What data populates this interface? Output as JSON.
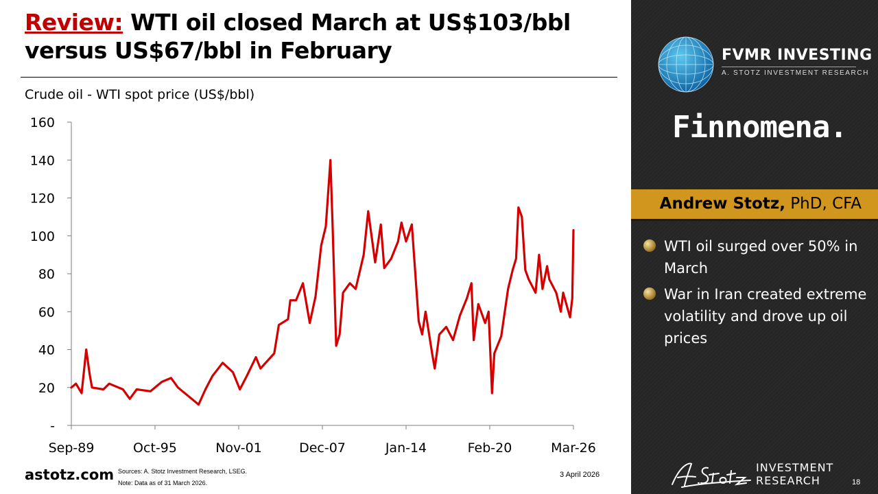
{
  "slide": {
    "title_lead": "Review:",
    "title_rest": " WTI oil closed March at US$103/bbl versus US$67/bbl in February",
    "footer_brand": "astotz.com",
    "sources": "Sources: A. Stotz Investment Research, LSEG.",
    "note": "Note: Data as of 31 March 2026.",
    "date": "3 April 2026",
    "page_number": "18"
  },
  "sidebar": {
    "fvmr_name": "FVMR INVESTING",
    "fvmr_tagline": "A. STOTZ INVESTMENT RESEARCH",
    "partner_logo": "Finnomena.",
    "presenter_name": "Andrew Stotz,",
    "presenter_credentials": " PhD, CFA",
    "bullets": [
      "WTI oil surged over 50% in March",
      "War in Iran created extreme volatility and drove up oil prices"
    ],
    "ir_logo_line1": "INVESTMENT",
    "ir_logo_line2": "RESEARCH",
    "accent_color": "#d0961e",
    "panel_color": "#262626",
    "icons": [
      "globe-icon",
      "signature-logo-icon",
      "bullet-icon"
    ]
  },
  "chart_data": {
    "type": "line",
    "title": "Crude oil - WTI spot price (US$/bbl)",
    "xlabel": "",
    "ylabel": "",
    "x_start": "1989-09",
    "x_end": "2026-03",
    "xlim": [
      "1989-09",
      "2026-03"
    ],
    "ylim": [
      0,
      160
    ],
    "y_ticks": [
      0,
      20,
      40,
      60,
      80,
      100,
      120,
      140,
      160
    ],
    "y_tick_labels": [
      "-",
      "20",
      "40",
      "60",
      "80",
      "100",
      "120",
      "140",
      "160"
    ],
    "x_ticks": [
      "1989-09",
      "1995-10",
      "2001-11",
      "2007-12",
      "2014-01",
      "2020-02",
      "2026-03"
    ],
    "x_tick_labels": [
      "Sep-89",
      "Oct-95",
      "Nov-01",
      "Dec-07",
      "Jan-14",
      "Feb-20",
      "Mar-26"
    ],
    "grid": false,
    "legend": "none",
    "series": [
      {
        "color": "#d40000",
        "points": [
          [
            "1989-09",
            20
          ],
          [
            "1990-01",
            22
          ],
          [
            "1990-06",
            17
          ],
          [
            "1990-10",
            40
          ],
          [
            "1991-01",
            27
          ],
          [
            "1991-03",
            20
          ],
          [
            "1992-01",
            19
          ],
          [
            "1992-06",
            22
          ],
          [
            "1993-06",
            19
          ],
          [
            "1993-12",
            14
          ],
          [
            "1994-06",
            19
          ],
          [
            "1995-06",
            18
          ],
          [
            "1996-04",
            23
          ],
          [
            "1996-12",
            25
          ],
          [
            "1997-06",
            20
          ],
          [
            "1998-06",
            14
          ],
          [
            "1998-12",
            11
          ],
          [
            "1999-06",
            19
          ],
          [
            "1999-12",
            26
          ],
          [
            "2000-09",
            33
          ],
          [
            "2001-06",
            28
          ],
          [
            "2001-12",
            19
          ],
          [
            "2002-06",
            26
          ],
          [
            "2003-02",
            36
          ],
          [
            "2003-06",
            30
          ],
          [
            "2004-06",
            38
          ],
          [
            "2004-10",
            53
          ],
          [
            "2005-06",
            56
          ],
          [
            "2005-08",
            66
          ],
          [
            "2006-01",
            66
          ],
          [
            "2006-07",
            75
          ],
          [
            "2007-01",
            54
          ],
          [
            "2007-06",
            68
          ],
          [
            "2007-11",
            95
          ],
          [
            "2008-03",
            105
          ],
          [
            "2008-07",
            140
          ],
          [
            "2008-09",
            104
          ],
          [
            "2008-12",
            42
          ],
          [
            "2009-03",
            48
          ],
          [
            "2009-06",
            70
          ],
          [
            "2009-12",
            75
          ],
          [
            "2010-05",
            72
          ],
          [
            "2010-12",
            90
          ],
          [
            "2011-04",
            113
          ],
          [
            "2011-10",
            86
          ],
          [
            "2012-03",
            106
          ],
          [
            "2012-06",
            83
          ],
          [
            "2012-12",
            88
          ],
          [
            "2013-06",
            97
          ],
          [
            "2013-09",
            107
          ],
          [
            "2014-01",
            97
          ],
          [
            "2014-06",
            106
          ],
          [
            "2014-12",
            55
          ],
          [
            "2015-03",
            48
          ],
          [
            "2015-06",
            60
          ],
          [
            "2015-12",
            37
          ],
          [
            "2016-02",
            30
          ],
          [
            "2016-06",
            48
          ],
          [
            "2016-12",
            52
          ],
          [
            "2017-06",
            45
          ],
          [
            "2017-12",
            58
          ],
          [
            "2018-06",
            67
          ],
          [
            "2018-10",
            75
          ],
          [
            "2018-12",
            45
          ],
          [
            "2019-04",
            64
          ],
          [
            "2019-10",
            54
          ],
          [
            "2020-01",
            60
          ],
          [
            "2020-04",
            17
          ],
          [
            "2020-06",
            38
          ],
          [
            "2020-12",
            47
          ],
          [
            "2021-06",
            72
          ],
          [
            "2021-10",
            82
          ],
          [
            "2022-01",
            88
          ],
          [
            "2022-03",
            115
          ],
          [
            "2022-06",
            110
          ],
          [
            "2022-09",
            82
          ],
          [
            "2022-12",
            77
          ],
          [
            "2023-06",
            70
          ],
          [
            "2023-09",
            90
          ],
          [
            "2023-12",
            72
          ],
          [
            "2024-04",
            84
          ],
          [
            "2024-06",
            77
          ],
          [
            "2024-12",
            70
          ],
          [
            "2025-04",
            60
          ],
          [
            "2025-06",
            70
          ],
          [
            "2025-12",
            57
          ],
          [
            "2026-02",
            67
          ],
          [
            "2026-03",
            103
          ]
        ]
      }
    ]
  }
}
